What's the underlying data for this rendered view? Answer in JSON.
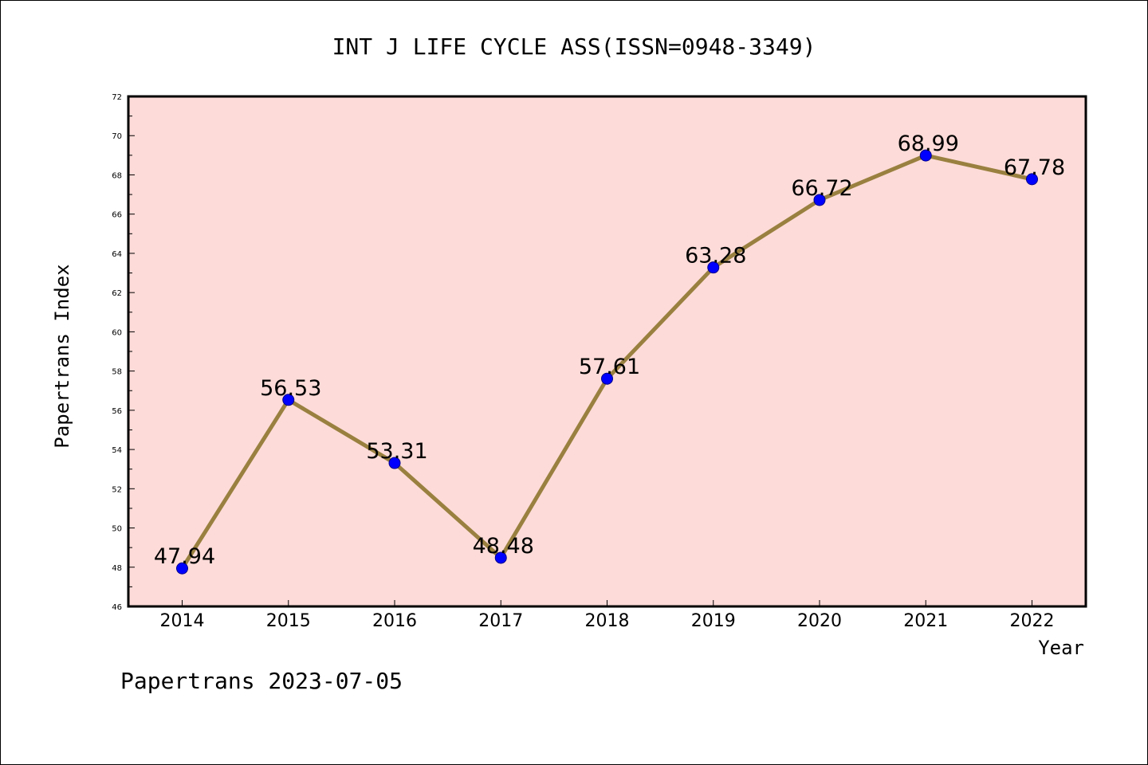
{
  "chart_data": {
    "type": "line",
    "title": "INT J LIFE CYCLE ASS(ISSN=0948-3349)",
    "xlabel": "Year",
    "ylabel": "Papertrans Index",
    "footer": "Papertrans 2023-07-05",
    "categories": [
      "2014",
      "2015",
      "2016",
      "2017",
      "2018",
      "2019",
      "2020",
      "2021",
      "2022"
    ],
    "values": [
      47.94,
      56.53,
      53.31,
      48.48,
      57.61,
      63.28,
      66.72,
      68.99,
      67.78
    ],
    "data_labels": [
      "47.94",
      "56.53",
      "53.31",
      "48.48",
      "57.61",
      "63.28",
      "66.72",
      "68.99",
      "67.78"
    ],
    "ylim": [
      46,
      72
    ],
    "yticks": [
      "46",
      "48",
      "50",
      "52",
      "54",
      "56",
      "58",
      "60",
      "62",
      "64",
      "66",
      "68",
      "70",
      "72"
    ],
    "grid": false,
    "colors": {
      "plot_background": "#fddbd8",
      "line": "#9a8040",
      "marker": "#0000ff",
      "axis": "#000000"
    }
  }
}
